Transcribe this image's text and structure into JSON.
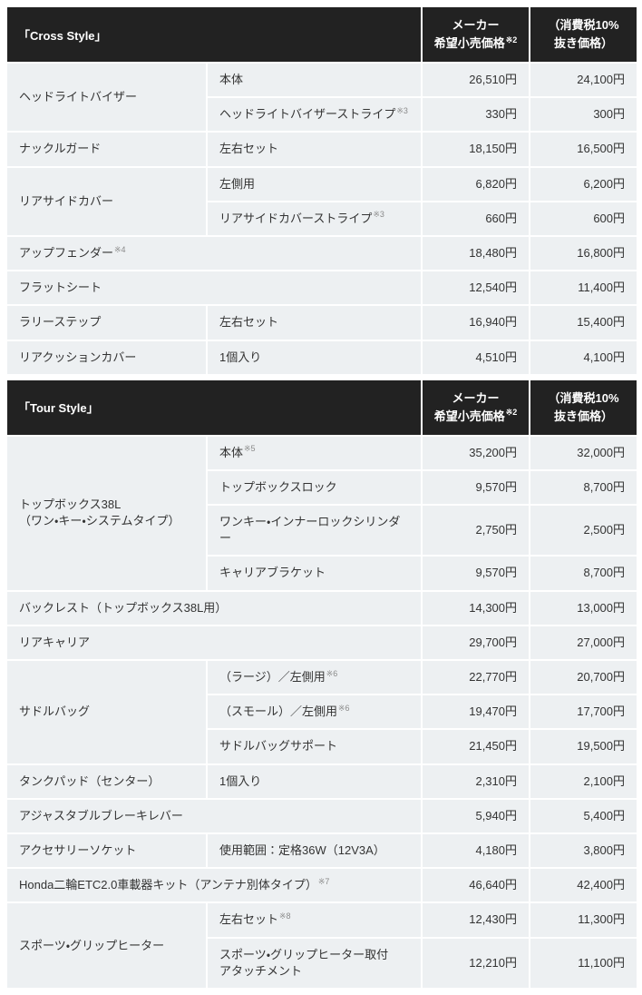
{
  "columns": {
    "price_label": "メーカー\n希望小売価格",
    "price_note": "※2",
    "tax_label": "（消費税10%\n抜き価格）"
  },
  "cross": {
    "title": "「Cross Style」",
    "items": [
      {
        "group": "ヘッドライトバイザー",
        "sub": "本体",
        "price": "26,510円",
        "tax_ex": "24,100円"
      },
      {
        "sub": "ヘッドライトバイザーストライプ",
        "sub_note": "※3",
        "price": "330円",
        "tax_ex": "300円"
      },
      {
        "group": "ナックルガード",
        "sub": "左右セット",
        "price": "18,150円",
        "tax_ex": "16,500円"
      },
      {
        "group": "リアサイドカバー",
        "sub": "左側用",
        "price": "6,820円",
        "tax_ex": "6,200円"
      },
      {
        "sub": "リアサイドカバーストライプ",
        "sub_note": "※3",
        "price": "660円",
        "tax_ex": "600円"
      },
      {
        "group": "アップフェンダー",
        "group_note": "※4",
        "price": "18,480円",
        "tax_ex": "16,800円"
      },
      {
        "group": "フラットシート",
        "price": "12,540円",
        "tax_ex": "11,400円"
      },
      {
        "group": "ラリーステップ",
        "sub": "左右セット",
        "price": "16,940円",
        "tax_ex": "15,400円"
      },
      {
        "group": "リアクッションカバー",
        "sub": "1個入り",
        "price": "4,510円",
        "tax_ex": "4,100円"
      }
    ]
  },
  "tour": {
    "title": "「Tour Style」",
    "items": [
      {
        "group": "トップボックス38L\n（ワン・キー・システムタイプ）",
        "sub": "本体",
        "sub_note": "※5",
        "price": "35,200円",
        "tax_ex": "32,000円"
      },
      {
        "sub": "トップボックスロック",
        "price": "9,570円",
        "tax_ex": "8,700円"
      },
      {
        "sub": "ワンキー・インナーロックシリンダー",
        "price": "2,750円",
        "tax_ex": "2,500円"
      },
      {
        "sub": "キャリアブラケット",
        "price": "9,570円",
        "tax_ex": "8,700円"
      },
      {
        "group": "バックレスト（トップボックス38L用）",
        "price": "14,300円",
        "tax_ex": "13,000円"
      },
      {
        "group": "リアキャリア",
        "price": "29,700円",
        "tax_ex": "27,000円"
      },
      {
        "group": "サドルバッグ",
        "sub": "（ラージ）／左側用",
        "sub_note": "※6",
        "price": "22,770円",
        "tax_ex": "20,700円"
      },
      {
        "sub": "（スモール）／左側用",
        "sub_note": "※6",
        "price": "19,470円",
        "tax_ex": "17,700円"
      },
      {
        "sub": "サドルバッグサポート",
        "price": "21,450円",
        "tax_ex": "19,500円"
      },
      {
        "group": "タンクパッド（センター）",
        "sub": "1個入り",
        "price": "2,310円",
        "tax_ex": "2,100円"
      },
      {
        "group": "アジャスタブルブレーキレバー",
        "price": "5,940円",
        "tax_ex": "5,400円"
      },
      {
        "group": "アクセサリーソケット",
        "sub": "使用範囲：定格36W（12V3A）",
        "price": "4,180円",
        "tax_ex": "3,800円"
      },
      {
        "group": "Honda二輪ETC2.0車載器キット（アンテナ別体タイプ）",
        "group_note": "※7",
        "price": "46,640円",
        "tax_ex": "42,400円"
      },
      {
        "group": "スポーツ・グリップヒーター",
        "sub": "左右セット",
        "sub_note": "※8",
        "price": "12,430円",
        "tax_ex": "11,300円"
      },
      {
        "sub": "スポーツ・グリップヒーター取付\nアタッチメント",
        "price": "12,210円",
        "tax_ex": "11,100円"
      }
    ]
  },
  "colors": {
    "header_bg": "#222222",
    "header_text": "#ffffff",
    "cell_bg": "#edf0f2",
    "body_text": "#333333",
    "note_text": "#8a8a8a"
  }
}
